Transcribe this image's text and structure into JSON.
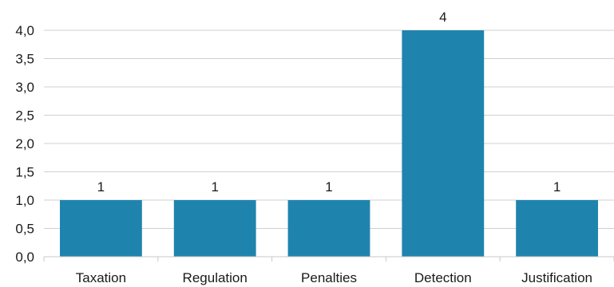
{
  "chart_data": {
    "type": "bar",
    "categories": [
      "Taxation",
      "Regulation",
      "Penalties",
      "Detection",
      "Justification"
    ],
    "values": [
      1,
      1,
      1,
      4,
      1
    ],
    "data_labels": [
      "1",
      "1",
      "1",
      "4",
      "1"
    ],
    "yticks": [
      "0,0",
      "0,5",
      "1,0",
      "1,5",
      "2,0",
      "2,5",
      "3,0",
      "3,5",
      "4,0"
    ],
    "ylim": [
      0,
      4
    ],
    "ytick_step": 0.5,
    "grid": true,
    "bar_color": "#1f84ad",
    "title": "",
    "xlabel": "",
    "ylabel": ""
  }
}
